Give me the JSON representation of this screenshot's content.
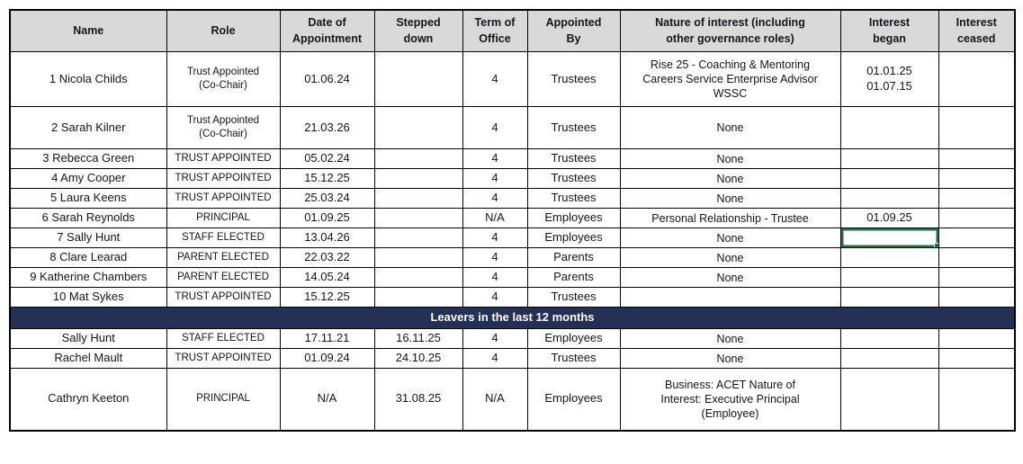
{
  "colors": {
    "header-bg": "#D9D9D9",
    "banner-bg": "#243055",
    "banner-text": "#FFFFFF",
    "selection": "#217346",
    "grid": "#000000",
    "text": "#14161c",
    "page-bg": "#FFFFFF"
  },
  "table": {
    "columns": [
      {
        "key": "name",
        "label": "Name"
      },
      {
        "key": "role",
        "label": "Role"
      },
      {
        "key": "date-of-appointment",
        "label": "Date of\nAppointment"
      },
      {
        "key": "stepped-down",
        "label": "Stepped\ndown"
      },
      {
        "key": "term-of-office",
        "label": "Term of\nOffice"
      },
      {
        "key": "appointed-by",
        "label": "Appointed\nBy"
      },
      {
        "key": "nature-of-interest",
        "label": "Nature of interest (including\nother governance roles)"
      },
      {
        "key": "interest-began",
        "label": "Interest\nbegan"
      },
      {
        "key": "interest-ceased",
        "label": "Interest\nceased"
      }
    ],
    "members": [
      {
        "cells": [
          "1 Nicola Childs",
          "Trust Appointed\n(Co-Chair)",
          "01.06.24",
          "",
          "4",
          "Trustees",
          "Rise 25 - Coaching & Mentoring\nCareers Service Enterprise Advisor\nWSSC",
          "01.01.25\n01.07.15",
          ""
        ]
      },
      {
        "cells": [
          "2 Sarah Kilner",
          "Trust Appointed\n(Co-Chair)",
          "21.03.26",
          "",
          "4",
          "Trustees",
          "None",
          "",
          ""
        ]
      },
      {
        "cells": [
          "3 Rebecca Green",
          "TRUST APPOINTED",
          "05.02.24",
          "",
          "4",
          "Trustees",
          "None",
          "",
          ""
        ]
      },
      {
        "cells": [
          "4 Amy Cooper",
          "TRUST APPOINTED",
          "15.12.25",
          "",
          "4",
          "Trustees",
          "None",
          "",
          ""
        ]
      },
      {
        "cells": [
          "5 Laura Keens",
          "TRUST APPOINTED",
          "25.03.24",
          "",
          "4",
          "Trustees",
          "None",
          "",
          ""
        ]
      },
      {
        "cells": [
          "6 Sarah Reynolds",
          "PRINCIPAL",
          "01.09.25",
          "",
          "N/A",
          "Employees",
          "Personal Relationship - Trustee",
          "01.09.25",
          ""
        ]
      },
      {
        "cells": [
          "7 Sally Hunt",
          "STAFF ELECTED",
          "13.04.26",
          "",
          "4",
          "Employees",
          "None",
          "",
          ""
        ]
      },
      {
        "cells": [
          "8 Clare Learad",
          "PARENT ELECTED",
          "22.03.22",
          "",
          "4",
          "Parents",
          "None",
          "",
          ""
        ]
      },
      {
        "cells": [
          "9 Katherine Chambers",
          "PARENT ELECTED",
          "14.05.24",
          "",
          "4",
          "Parents",
          "None",
          "",
          ""
        ]
      },
      {
        "cells": [
          "10 Mat Sykes",
          "TRUST APPOINTED",
          "15.12.25",
          "",
          "4",
          "Trustees",
          "",
          "",
          ""
        ]
      }
    ],
    "banner_label": "Leavers in the last 12 months",
    "leavers": [
      {
        "cells": [
          "Sally Hunt",
          "STAFF ELECTED",
          "17.11.21",
          "16.11.25",
          "4",
          "Employees",
          "None",
          "",
          ""
        ]
      },
      {
        "cells": [
          "Rachel Mault",
          "TRUST APPOINTED",
          "01.09.24",
          "24.10.25",
          "4",
          "Trustees",
          "None",
          "",
          ""
        ]
      },
      {
        "cells": [
          "Cathryn Keeton",
          "PRINCIPAL",
          "N/A",
          "31.08.25",
          "N/A",
          "Employees",
          "Business: ACET Nature of\nInterest: Executive Principal\n(Employee)",
          "",
          ""
        ]
      }
    ],
    "selection": {
      "section": "members",
      "row_index": 6,
      "col_index": 7
    }
  }
}
